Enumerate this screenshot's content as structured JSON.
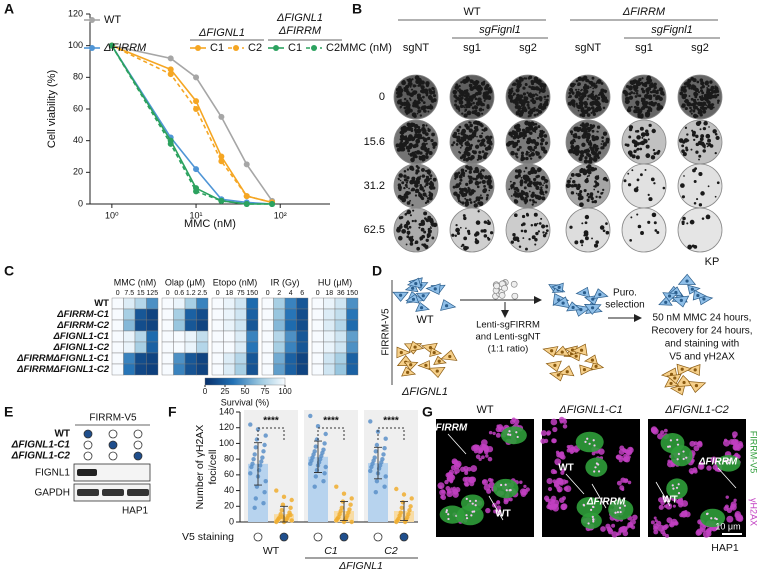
{
  "panel_labels": [
    "A",
    "B",
    "C",
    "D",
    "E",
    "F",
    "G"
  ],
  "panel_a": {
    "type": "line",
    "ylabel": "Cell viability (%)",
    "xlabel": "MMC (nM)",
    "x": [
      1,
      5,
      10,
      20,
      40,
      80
    ],
    "xlim": [
      0.55,
      390
    ],
    "log_x": true,
    "xticks": [
      {
        "value": 1,
        "label": "10⁰"
      },
      {
        "value": 10,
        "label": "10¹"
      },
      {
        "value": 100,
        "label": "10²"
      }
    ],
    "ylim": [
      0,
      120
    ],
    "yticks": [
      0,
      20,
      40,
      60,
      80,
      100,
      120
    ],
    "series": [
      {
        "name": "WT",
        "color": "#a6a6a6",
        "dashed": false,
        "values": [
          100,
          92,
          80,
          55,
          25,
          2
        ]
      },
      {
        "name": "ΔFIRRM",
        "color": "#4f95d6",
        "dashed": false,
        "values": [
          100,
          42,
          22,
          3,
          1,
          0
        ]
      }
    ],
    "groups": [
      {
        "title": [
          "ΔFIGNL1"
        ],
        "series": [
          {
            "name": "C1",
            "color": "#f5a623",
            "dashed": false,
            "values": [
              100,
              85,
              65,
              30,
              5,
              1
            ]
          },
          {
            "name": "C2",
            "color": "#f5a623",
            "dashed": true,
            "values": [
              100,
              82,
              60,
              27,
              5,
              1
            ]
          }
        ]
      },
      {
        "title": [
          "ΔFIGNL1",
          "ΔFIRRM"
        ],
        "series": [
          {
            "name": "C1",
            "color": "#2ca25f",
            "dashed": false,
            "values": [
              100,
              40,
              10,
              2,
              0,
              0
            ]
          },
          {
            "name": "C2",
            "color": "#2ca25f",
            "dashed": true,
            "values": [
              100,
              38,
              8,
              2,
              0,
              0
            ]
          }
        ]
      }
    ]
  },
  "panel_b": {
    "groups": [
      {
        "name": "WT",
        "sub": "sgFignl1"
      },
      {
        "name": "ΔFIRRM",
        "sub": "sgFignl1"
      }
    ],
    "row_title": "MMC (nM)",
    "columns": [
      "sgNT",
      "sg1",
      "sg2",
      "sgNT",
      "sg1",
      "sg2"
    ],
    "rows": [
      0,
      15.6,
      31.2,
      62.5
    ],
    "footer": "KP"
  },
  "panel_c": {
    "treatments": [
      {
        "name": "MMC (nM)",
        "doses": [
          0,
          7.5,
          15,
          125
        ]
      },
      {
        "name": "Olap (μM)",
        "doses": [
          0,
          0.6,
          1.2,
          2.5
        ]
      },
      {
        "name": "Etopo (nM)",
        "doses": [
          0,
          18,
          75,
          150
        ]
      },
      {
        "name": "IR (Gy)",
        "doses": [
          0,
          2,
          4,
          6
        ]
      },
      {
        "name": "HU (μM)",
        "doses": [
          0,
          18,
          36,
          150
        ]
      }
    ],
    "rows": [
      "WT",
      "ΔFIRRM-C1",
      "ΔFIRRM-C2",
      "ΔFIGNL1-C1",
      "ΔFIGNL1-C2",
      "ΔFIRRMΔFIGNL1-C1",
      "ΔFIRRMΔFIGNL1-C2"
    ],
    "values": [
      [
        100,
        90,
        75,
        45,
        100,
        95,
        70,
        40,
        100,
        95,
        85,
        30,
        100,
        70,
        40,
        20,
        100,
        95,
        85,
        45
      ],
      [
        100,
        70,
        20,
        10,
        100,
        70,
        25,
        15,
        100,
        95,
        85,
        25,
        100,
        65,
        35,
        15,
        100,
        90,
        80,
        35
      ],
      [
        100,
        60,
        15,
        10,
        100,
        65,
        20,
        10,
        100,
        95,
        85,
        20,
        100,
        60,
        30,
        15,
        100,
        90,
        75,
        30
      ],
      [
        100,
        95,
        75,
        30,
        100,
        100,
        95,
        80,
        100,
        100,
        90,
        40,
        100,
        75,
        45,
        20,
        100,
        95,
        85,
        50
      ],
      [
        100,
        95,
        70,
        25,
        100,
        100,
        95,
        75,
        100,
        100,
        90,
        35,
        100,
        70,
        40,
        20,
        100,
        95,
        85,
        45
      ],
      [
        100,
        40,
        15,
        10,
        100,
        45,
        20,
        10,
        100,
        90,
        75,
        20,
        100,
        55,
        25,
        10,
        100,
        85,
        70,
        25
      ],
      [
        100,
        35,
        12,
        8,
        100,
        40,
        18,
        10,
        100,
        90,
        70,
        18,
        100,
        50,
        25,
        10,
        100,
        85,
        65,
        25
      ]
    ],
    "colorbar": {
      "ticks": [
        0,
        25,
        50,
        75,
        100
      ],
      "label": "Survival (%)"
    }
  },
  "panel_d": {
    "vertical_label": "FIRRM-V5",
    "wt": "WT",
    "mutant": "ΔFIGNL1",
    "lenti": [
      "Lenti-sgFIRRM",
      "and Lenti-sgNT",
      "(1:1 ratio)"
    ],
    "selection": [
      "Puro.",
      "selection"
    ],
    "treatment": [
      "50 nM MMC 24 hours,",
      "Recovery for 24 hours,",
      "and staining with",
      "V5 and γH2AX"
    ]
  },
  "panel_e": {
    "header": "FIRRM-V5",
    "rows": [
      "WT",
      "ΔFIGNL1-C1",
      "ΔFIGNL1-C2"
    ],
    "bands": [
      "FIGNL1",
      "GAPDH"
    ],
    "cell_line": "HAP1"
  },
  "panel_f": {
    "ylabel": [
      "Number of γH2AX",
      "foci/cell"
    ],
    "ylim": [
      0,
      140
    ],
    "yticks": [
      0,
      20,
      40,
      60,
      80,
      100,
      120,
      140
    ],
    "v5_label": "V5 staining",
    "group_title": "ΔFIGNL1",
    "groups": [
      {
        "name": "WT",
        "significance": "****",
        "bars": [
          {
            "mean": 74,
            "sd": 27,
            "points": [
              124,
              118,
              110,
              105,
              98,
              95,
              90,
              86,
              82,
              80,
              77,
              74,
              72,
              70,
              66,
              62,
              58,
              52,
              45,
              38,
              30,
              24,
              18
            ]
          },
          {
            "mean": 10,
            "sd": 10,
            "points": [
              40,
              32,
              28,
              22,
              18,
              15,
              12,
              10,
              8,
              6,
              5,
              4,
              3,
              2,
              1,
              0,
              0,
              2,
              6,
              9
            ]
          }
        ]
      },
      {
        "name": "C1",
        "significance": "****",
        "bars": [
          {
            "mean": 83,
            "sd": 20,
            "points": [
              135,
              122,
              112,
              105,
              100,
              96,
              92,
              90,
              88,
              86,
              84,
              82,
              80,
              78,
              76,
              74,
              72,
              70,
              66,
              62,
              58,
              52,
              45
            ]
          },
          {
            "mean": 14,
            "sd": 12,
            "points": [
              45,
              36,
              30,
              26,
              22,
              18,
              16,
              14,
              12,
              10,
              8,
              6,
              5,
              4,
              3,
              2,
              0,
              0
            ]
          }
        ]
      },
      {
        "name": "C2",
        "significance": "****",
        "bars": [
          {
            "mean": 75,
            "sd": 20,
            "points": [
              128,
              115,
              106,
              98,
              94,
              90,
              86,
              82,
              80,
              78,
              76,
              74,
              72,
              70,
              68,
              65,
              62,
              58,
              52,
              45,
              38
            ]
          },
          {
            "mean": 14,
            "sd": 12,
            "points": [
              42,
              35,
              30,
              25,
              20,
              18,
              15,
              12,
              10,
              8,
              6,
              4,
              3,
              2,
              0,
              0
            ]
          }
        ]
      }
    ]
  },
  "panel_g": {
    "titles": [
      "WT",
      "ΔFIGNL1-C1",
      "ΔFIGNL1-C2"
    ],
    "annotations": [
      [
        "ΔFIRRM",
        "WT"
      ],
      [
        "WT",
        "ΔFIRRM"
      ],
      [
        "ΔFIRRM",
        "WT"
      ]
    ],
    "channels": [
      "FIRRM-V5",
      "γH2AX"
    ],
    "scale_bar": "10 μm",
    "cell_line": "HAP1"
  }
}
